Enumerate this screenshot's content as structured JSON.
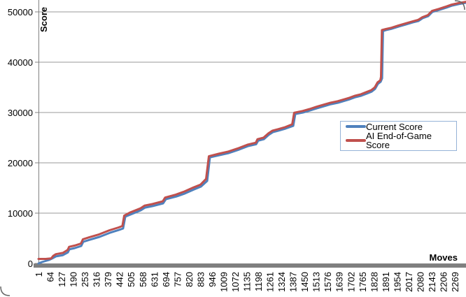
{
  "chart_data": {
    "type": "line",
    "xlabel": "Moves",
    "ylabel": "Score",
    "x_tick_labels": [
      "1",
      "64",
      "127",
      "190",
      "253",
      "316",
      "379",
      "442",
      "505",
      "568",
      "631",
      "694",
      "757",
      "820",
      "883",
      "946",
      "1009",
      "1072",
      "1135",
      "1198",
      "1261",
      "1324",
      "1387",
      "1450",
      "1513",
      "1576",
      "1639",
      "1702",
      "1765",
      "1828",
      "1891",
      "1954",
      "2017",
      "2080",
      "2143",
      "2206",
      "2269"
    ],
    "x_tick_step": 63,
    "x_range": [
      1,
      2330
    ],
    "y_ticks": [
      0,
      10000,
      20000,
      30000,
      40000,
      50000
    ],
    "ylim": [
      0,
      52400
    ],
    "grid": "horizontal",
    "legend_position": "middle-right",
    "series": [
      {
        "name": "Current Score",
        "color": "#4F81BD",
        "points": [
          [
            1,
            0
          ],
          [
            20,
            280
          ],
          [
            58,
            700
          ],
          [
            81,
            1100
          ],
          [
            96,
            1400
          ],
          [
            134,
            1650
          ],
          [
            161,
            2200
          ],
          [
            169,
            2800
          ],
          [
            199,
            3050
          ],
          [
            234,
            3470
          ],
          [
            245,
            4300
          ],
          [
            279,
            4700
          ],
          [
            333,
            5280
          ],
          [
            390,
            6100
          ],
          [
            439,
            6650
          ],
          [
            462,
            6950
          ],
          [
            474,
            9300
          ],
          [
            500,
            9700
          ],
          [
            558,
            10550
          ],
          [
            581,
            11100
          ],
          [
            623,
            11400
          ],
          [
            680,
            11950
          ],
          [
            695,
            12780
          ],
          [
            752,
            13300
          ],
          [
            798,
            13900
          ],
          [
            847,
            14700
          ],
          [
            886,
            15280
          ],
          [
            920,
            16400
          ],
          [
            935,
            21100
          ],
          [
            985,
            21500
          ],
          [
            1038,
            21950
          ],
          [
            1095,
            22650
          ],
          [
            1141,
            23300
          ],
          [
            1187,
            23700
          ],
          [
            1198,
            24400
          ],
          [
            1229,
            24700
          ],
          [
            1255,
            25550
          ],
          [
            1278,
            26100
          ],
          [
            1309,
            26400
          ],
          [
            1347,
            26800
          ],
          [
            1389,
            27350
          ],
          [
            1400,
            29700
          ],
          [
            1442,
            30000
          ],
          [
            1480,
            30400
          ],
          [
            1518,
            30850
          ],
          [
            1556,
            31250
          ],
          [
            1594,
            31650
          ],
          [
            1633,
            31950
          ],
          [
            1671,
            32350
          ],
          [
            1698,
            32650
          ],
          [
            1728,
            33050
          ],
          [
            1759,
            33330
          ],
          [
            1789,
            33750
          ],
          [
            1816,
            34150
          ],
          [
            1835,
            34700
          ],
          [
            1850,
            35700
          ],
          [
            1865,
            36100
          ],
          [
            1873,
            36800
          ],
          [
            1878,
            46200
          ],
          [
            1896,
            46400
          ],
          [
            1926,
            46650
          ],
          [
            1964,
            47100
          ],
          [
            2002,
            47500
          ],
          [
            2040,
            47900
          ],
          [
            2071,
            48200
          ],
          [
            2094,
            48750
          ],
          [
            2124,
            49150
          ],
          [
            2147,
            50000
          ],
          [
            2185,
            50400
          ],
          [
            2223,
            50850
          ],
          [
            2254,
            51250
          ],
          [
            2292,
            51550
          ],
          [
            2330,
            51800
          ]
        ]
      },
      {
        "name": "AI End-of-Game Score",
        "color": "#C0504D",
        "points": [
          [
            1,
            900
          ],
          [
            40,
            900
          ],
          [
            70,
            1000
          ],
          [
            81,
            1500
          ],
          [
            96,
            1850
          ],
          [
            134,
            2100
          ],
          [
            160,
            2700
          ],
          [
            168,
            3300
          ],
          [
            198,
            3550
          ],
          [
            232,
            3950
          ],
          [
            243,
            4800
          ],
          [
            277,
            5200
          ],
          [
            331,
            5780
          ],
          [
            388,
            6600
          ],
          [
            437,
            7150
          ],
          [
            458,
            7450
          ],
          [
            468,
            9500
          ],
          [
            498,
            10100
          ],
          [
            556,
            10950
          ],
          [
            579,
            11500
          ],
          [
            621,
            11800
          ],
          [
            678,
            12350
          ],
          [
            691,
            13100
          ],
          [
            750,
            13700
          ],
          [
            796,
            14300
          ],
          [
            845,
            15100
          ],
          [
            884,
            15680
          ],
          [
            914,
            16800
          ],
          [
            929,
            21300
          ],
          [
            983,
            21800
          ],
          [
            1036,
            22250
          ],
          [
            1093,
            22950
          ],
          [
            1139,
            23600
          ],
          [
            1185,
            24000
          ],
          [
            1194,
            24700
          ],
          [
            1227,
            25000
          ],
          [
            1253,
            25850
          ],
          [
            1276,
            26400
          ],
          [
            1307,
            26700
          ],
          [
            1345,
            27100
          ],
          [
            1383,
            27650
          ],
          [
            1394,
            29950
          ],
          [
            1440,
            30300
          ],
          [
            1478,
            30700
          ],
          [
            1516,
            31150
          ],
          [
            1554,
            31550
          ],
          [
            1592,
            31950
          ],
          [
            1631,
            32250
          ],
          [
            1669,
            32650
          ],
          [
            1696,
            32950
          ],
          [
            1726,
            33350
          ],
          [
            1757,
            33630
          ],
          [
            1787,
            34050
          ],
          [
            1814,
            34450
          ],
          [
            1833,
            35000
          ],
          [
            1848,
            36000
          ],
          [
            1863,
            36400
          ],
          [
            1867,
            37100
          ],
          [
            1872,
            46400
          ],
          [
            1894,
            46600
          ],
          [
            1924,
            46850
          ],
          [
            1962,
            47300
          ],
          [
            2000,
            47700
          ],
          [
            2038,
            48100
          ],
          [
            2069,
            48400
          ],
          [
            2092,
            48950
          ],
          [
            2122,
            49350
          ],
          [
            2145,
            50200
          ],
          [
            2183,
            50600
          ],
          [
            2221,
            51050
          ],
          [
            2252,
            51450
          ],
          [
            2290,
            51750
          ],
          [
            2330,
            52000
          ]
        ]
      }
    ]
  },
  "legend": {
    "items": [
      {
        "label": "Current Score",
        "color": "#4F81BD"
      },
      {
        "label": "AI End-of-Game Score",
        "color": "#C0504D"
      }
    ],
    "border_color": "#95B3D7"
  },
  "colors": {
    "gridline": "#9A9A9A",
    "axis_line": "#808080",
    "axis_bar": "#7F7F7F",
    "text": "#000000",
    "background": "#FFFFFF"
  }
}
